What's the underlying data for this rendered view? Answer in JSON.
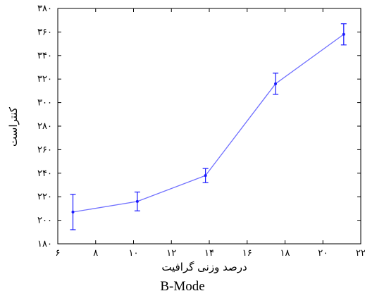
{
  "caption": "B-Mode",
  "chart_data": {
    "type": "line",
    "title": "",
    "xlabel": "درصد وزنی گرافیت",
    "ylabel": "کنتراست",
    "xlim": [
      6,
      22
    ],
    "ylim": [
      180,
      380
    ],
    "x_ticks": [
      6,
      8,
      10,
      12,
      14,
      16,
      18,
      20,
      22
    ],
    "x_tick_labels": [
      "۶",
      "۸",
      "۱۰",
      "۱۲",
      "۱۴",
      "۱۶",
      "۱۸",
      "۲۰",
      "۲۲"
    ],
    "y_ticks": [
      180,
      200,
      220,
      240,
      260,
      280,
      300,
      320,
      340,
      360,
      380
    ],
    "y_tick_labels": [
      "۱۸۰",
      "۲۰۰",
      "۲۲۰",
      "۲۴۰",
      "۲۶۰",
      "۲۸۰",
      "۳۰۰",
      "۳۲۰",
      "۳۴۰",
      "۳۶۰",
      "۳۸۰"
    ],
    "grid": false,
    "line_color": "#7070ff",
    "errorbar_color": "#1a1aff",
    "series": [
      {
        "x": [
          6.8,
          10.2,
          13.8,
          17.5,
          21.1
        ],
        "y": [
          207,
          216,
          238,
          316,
          358
        ],
        "err": [
          15,
          8,
          6,
          9,
          9
        ]
      }
    ]
  }
}
